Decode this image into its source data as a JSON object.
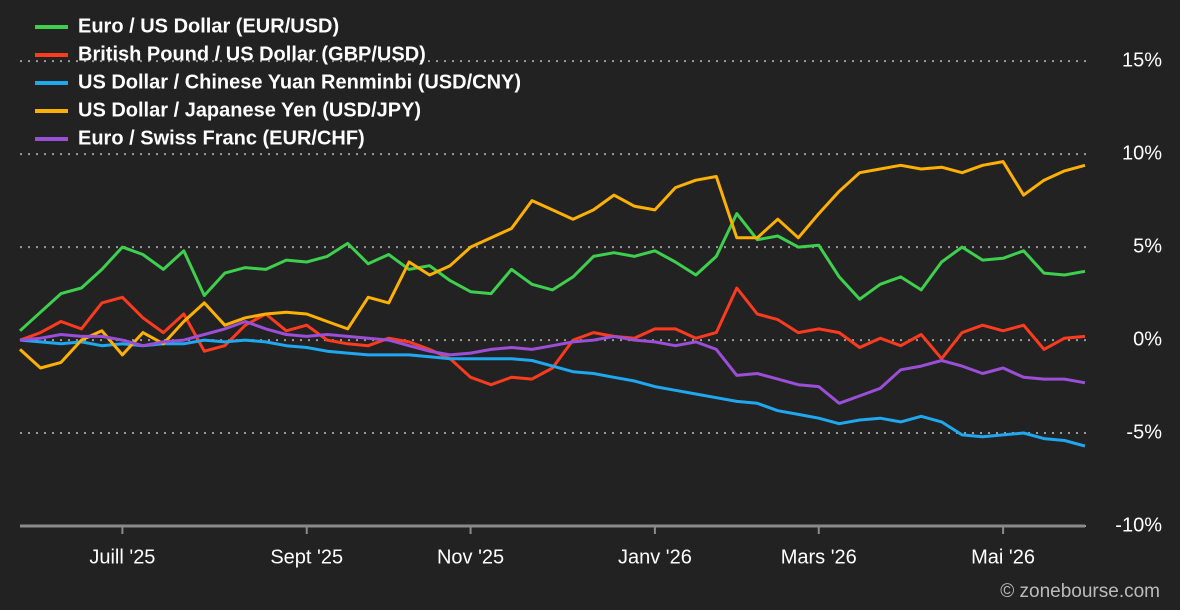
{
  "chart_data": {
    "type": "line",
    "source": "© zonebourse.com",
    "categories": [
      null,
      null,
      null,
      null,
      null,
      "Juill '25",
      null,
      null,
      null,
      null,
      null,
      null,
      null,
      null,
      "Sept '25",
      null,
      null,
      null,
      null,
      null,
      null,
      null,
      "Nov '25",
      null,
      null,
      null,
      null,
      null,
      null,
      null,
      null,
      "Janv '26",
      null,
      null,
      null,
      null,
      null,
      null,
      null,
      "Mars '26",
      null,
      null,
      null,
      null,
      null,
      null,
      null,
      null,
      "Mai '26",
      null,
      null,
      null,
      null
    ],
    "ylim": [
      -10,
      17
    ],
    "yticks": [
      {
        "value": 15,
        "label": "15%"
      },
      {
        "value": 10,
        "label": "10%"
      },
      {
        "value": 5,
        "label": "5%"
      },
      {
        "value": 0,
        "label": "0%"
      },
      {
        "value": -5,
        "label": "-5%"
      },
      {
        "value": -10,
        "label": "-10%"
      }
    ],
    "grid": true,
    "legend": "top-left",
    "series": [
      {
        "name": "Euro / US Dollar (EUR/USD)",
        "color": "#3ecf4e",
        "values": [
          0.5,
          1.5,
          2.5,
          2.8,
          3.8,
          5.0,
          4.6,
          3.8,
          4.8,
          2.4,
          3.6,
          3.9,
          3.8,
          4.3,
          4.2,
          4.5,
          5.2,
          4.1,
          4.6,
          3.8,
          4.0,
          3.2,
          2.6,
          2.5,
          3.8,
          3.0,
          2.7,
          3.4,
          4.5,
          4.7,
          4.5,
          4.8,
          4.2,
          3.5,
          4.5,
          6.8,
          5.4,
          5.6,
          5.0,
          5.1,
          3.4,
          2.2,
          3.0,
          3.4,
          2.7,
          4.2,
          5.0,
          4.3,
          4.4,
          4.8,
          3.6,
          3.5,
          3.7
        ]
      },
      {
        "name": "British Pound / US Dollar (GBP/USD)",
        "color": "#ff3b1f",
        "values": [
          0,
          0.4,
          1.0,
          0.6,
          2.0,
          2.3,
          1.2,
          0.4,
          1.4,
          -0.6,
          -0.3,
          0.8,
          1.4,
          0.5,
          0.8,
          0.0,
          -0.2,
          -0.3,
          0.1,
          -0.1,
          -0.5,
          -1.0,
          -2.0,
          -2.4,
          -2.0,
          -2.1,
          -1.5,
          0.0,
          0.4,
          0.2,
          0.1,
          0.6,
          0.6,
          0.1,
          0.4,
          2.8,
          1.4,
          1.1,
          0.4,
          0.6,
          0.4,
          -0.4,
          0.1,
          -0.3,
          0.3,
          -1.0,
          0.4,
          0.8,
          0.5,
          0.8,
          -0.5,
          0.1,
          0.2
        ]
      },
      {
        "name": "US Dollar / Chinese Yuan Renminbi (USD/CNY)",
        "color": "#1fa8ef",
        "values": [
          0,
          -0.1,
          -0.2,
          -0.1,
          -0.3,
          -0.2,
          -0.3,
          -0.2,
          -0.2,
          0.0,
          -0.1,
          0.0,
          -0.1,
          -0.3,
          -0.4,
          -0.6,
          -0.7,
          -0.8,
          -0.8,
          -0.8,
          -0.9,
          -1.0,
          -1.0,
          -1.0,
          -1.0,
          -1.1,
          -1.4,
          -1.7,
          -1.8,
          -2.0,
          -2.2,
          -2.5,
          -2.7,
          -2.9,
          -3.1,
          -3.3,
          -3.4,
          -3.8,
          -4.0,
          -4.2,
          -4.5,
          -4.3,
          -4.2,
          -4.4,
          -4.1,
          -4.4,
          -5.1,
          -5.2,
          -5.1,
          -5.0,
          -5.3,
          -5.4,
          -5.7
        ]
      },
      {
        "name": "US Dollar / Japanese Yen (USD/JPY)",
        "color": "#ffb000",
        "values": [
          -0.5,
          -1.5,
          -1.2,
          0.0,
          0.5,
          -0.8,
          0.4,
          -0.2,
          1.0,
          2.0,
          0.8,
          1.2,
          1.4,
          1.5,
          1.4,
          1.0,
          0.6,
          2.3,
          2.0,
          4.2,
          3.5,
          4.0,
          5.0,
          5.5,
          6.0,
          7.5,
          7.0,
          6.5,
          7.0,
          7.8,
          7.2,
          7.0,
          8.2,
          8.6,
          8.8,
          5.5,
          5.5,
          6.5,
          5.5,
          6.8,
          8.0,
          9.0,
          9.2,
          9.4,
          9.2,
          9.3,
          9.0,
          9.4,
          9.6,
          7.8,
          8.6,
          9.1,
          9.4
        ]
      },
      {
        "name": "Euro / Swiss Franc (EUR/CHF)",
        "color": "#9a4fd6",
        "values": [
          0,
          0.1,
          0.3,
          0.2,
          0.2,
          0.0,
          -0.3,
          -0.1,
          0.0,
          0.3,
          0.6,
          1.0,
          0.6,
          0.3,
          0.2,
          0.3,
          0.2,
          0.1,
          0.0,
          -0.3,
          -0.6,
          -0.8,
          -0.7,
          -0.5,
          -0.4,
          -0.5,
          -0.3,
          -0.1,
          0.0,
          0.2,
          0.0,
          -0.1,
          -0.3,
          -0.1,
          -0.5,
          -1.9,
          -1.8,
          -2.1,
          -2.4,
          -2.5,
          -3.4,
          -3.0,
          -2.6,
          -1.6,
          -1.4,
          -1.1,
          -1.4,
          -1.8,
          -1.5,
          -2.0,
          -2.1,
          -2.1,
          -2.3
        ]
      }
    ]
  }
}
